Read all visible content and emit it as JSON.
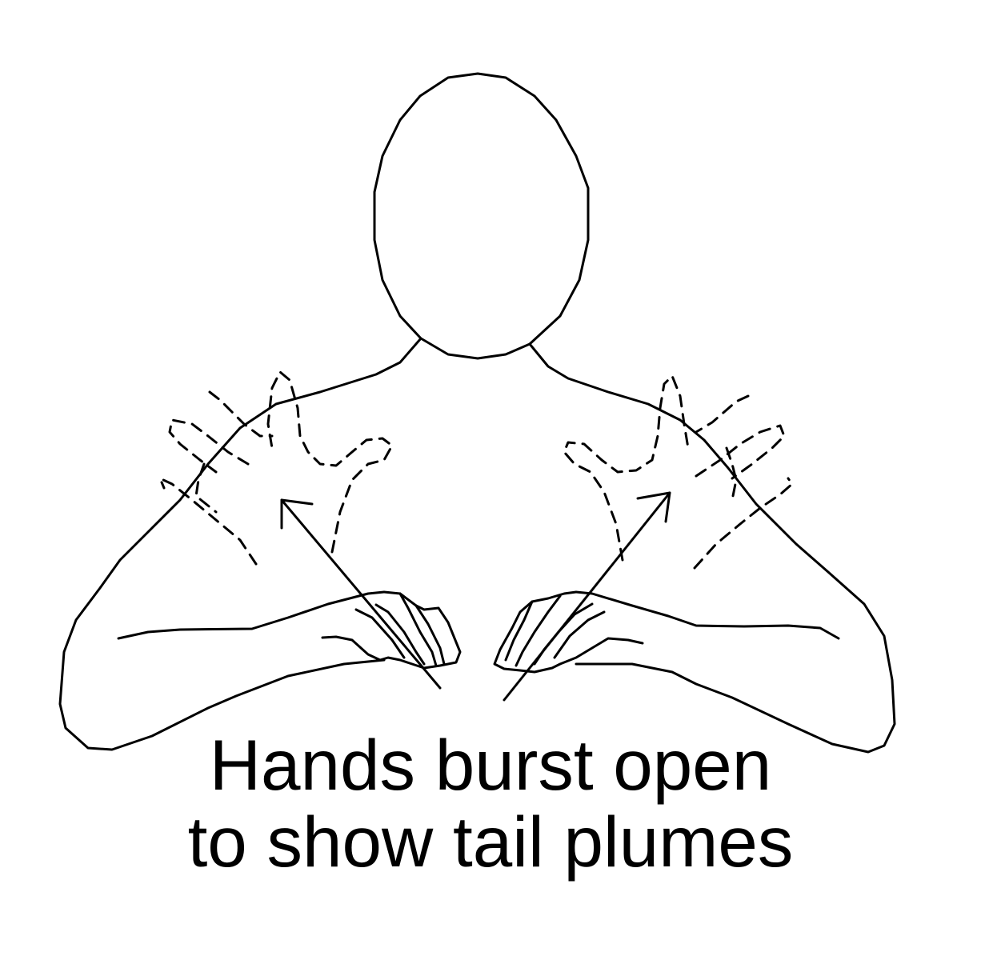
{
  "caption": {
    "line1": "Hands burst open",
    "line2": "to show tail plumes"
  },
  "colors": {
    "stroke": "#000000",
    "background": "#ffffff"
  }
}
